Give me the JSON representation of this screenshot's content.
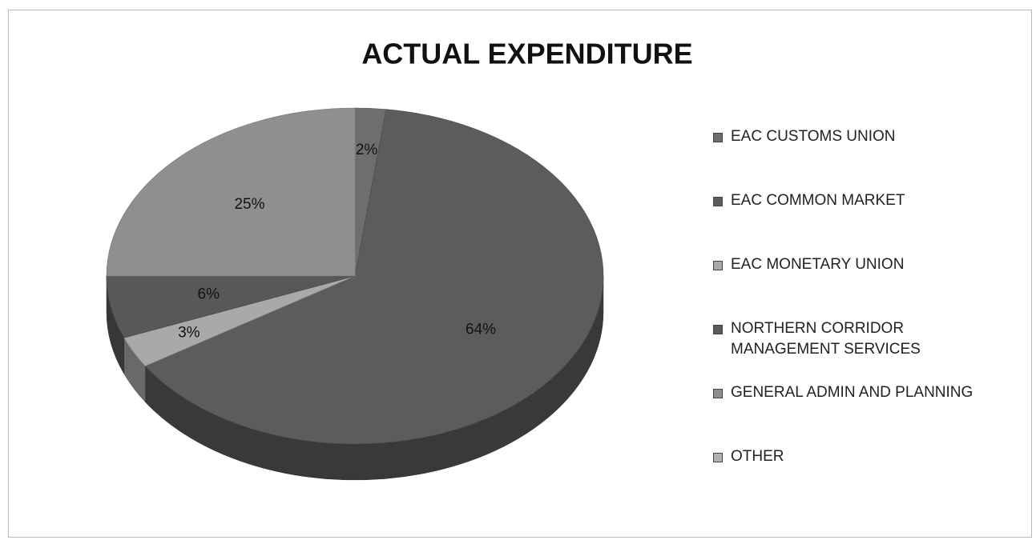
{
  "chart_data": {
    "type": "pie",
    "title": "ACTUAL EXPENDITURE",
    "categories": [
      "EAC CUSTOMS UNION",
      "EAC COMMON MARKET",
      "EAC MONETARY UNION",
      "NORTHERN CORRIDOR MANAGEMENT SERVICES",
      "GENERAL ADMIN AND PLANNING",
      "OTHER"
    ],
    "values": [
      2,
      64,
      3,
      6,
      25,
      0
    ],
    "value_labels": [
      "2%",
      "64%",
      "3%",
      "6%",
      "25%",
      null
    ],
    "colors": [
      "#6e6e6e",
      "#5c5c5c",
      "#a9a9a9",
      "#585858",
      "#8f8f8f",
      "#b3b3b3"
    ],
    "legend": "right"
  }
}
